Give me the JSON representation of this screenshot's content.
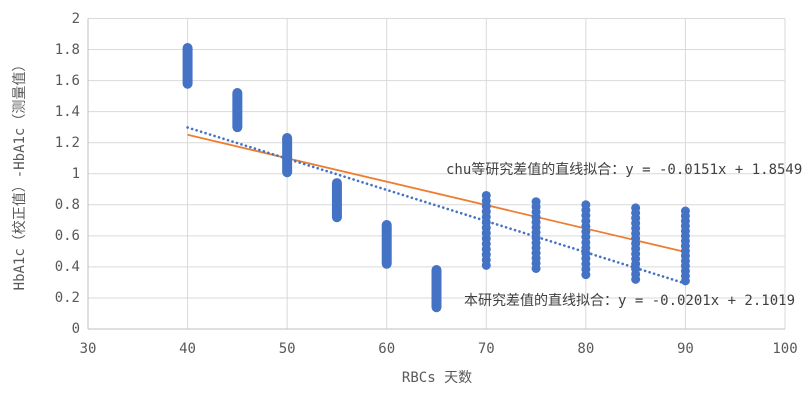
{
  "chart_data": {
    "type": "scatter",
    "title": "",
    "xlabel": "RBCs 天数",
    "ylabel": "HbA1c（校正值）-HbA1c（测量值）",
    "xlim": [
      30,
      100
    ],
    "ylim": [
      0,
      2
    ],
    "grid": true,
    "legend_position": "none",
    "xticks": [
      {
        "v": 30,
        "label": "30"
      },
      {
        "v": 40,
        "label": "40"
      },
      {
        "v": 50,
        "label": "50"
      },
      {
        "v": 60,
        "label": "60"
      },
      {
        "v": 70,
        "label": "70"
      },
      {
        "v": 80,
        "label": "80"
      },
      {
        "v": 90,
        "label": "90"
      },
      {
        "v": 100,
        "label": "100"
      }
    ],
    "yticks": [
      {
        "v": 0,
        "label": "0"
      },
      {
        "v": 0.2,
        "label": "0.2"
      },
      {
        "v": 0.4,
        "label": "0.4"
      },
      {
        "v": 0.6,
        "label": "0.6"
      },
      {
        "v": 0.8,
        "label": "0.8"
      },
      {
        "v": 1,
        "label": "1"
      },
      {
        "v": 1.2,
        "label": "1.2"
      },
      {
        "v": 1.4,
        "label": "1.4"
      },
      {
        "v": 1.6,
        "label": "1.6"
      },
      {
        "v": 1.8,
        "label": "1.8"
      },
      {
        "v": 2,
        "label": "2"
      }
    ],
    "clusters": [
      {
        "x": 40,
        "y_min": 1.58,
        "y_max": 1.81,
        "style": "capsule"
      },
      {
        "x": 45,
        "y_min": 1.3,
        "y_max": 1.52,
        "style": "capsule"
      },
      {
        "x": 50,
        "y_min": 1.01,
        "y_max": 1.23,
        "style": "capsule"
      },
      {
        "x": 55,
        "y_min": 0.72,
        "y_max": 0.94,
        "style": "capsule"
      },
      {
        "x": 60,
        "y_min": 0.42,
        "y_max": 0.67,
        "style": "capsule"
      },
      {
        "x": 65,
        "y_min": 0.14,
        "y_max": 0.38,
        "style": "capsule"
      },
      {
        "x": 70,
        "y_min": 0.41,
        "y_max": 0.86,
        "style": "beads",
        "n_dots": 14
      },
      {
        "x": 75,
        "y_min": 0.39,
        "y_max": 0.82,
        "style": "beads",
        "n_dots": 14
      },
      {
        "x": 80,
        "y_min": 0.35,
        "y_max": 0.8,
        "style": "beads",
        "n_dots": 14
      },
      {
        "x": 85,
        "y_min": 0.32,
        "y_max": 0.78,
        "style": "beads",
        "n_dots": 15
      },
      {
        "x": 90,
        "y_min": 0.31,
        "y_max": 0.76,
        "style": "beads",
        "n_dots": 15
      }
    ],
    "trendlines": [
      {
        "id": "chu-fit",
        "label": "chu等研究差值的直线拟合：y = -0.0151x + 1.8549",
        "equation": "y = -0.0151x + 1.8549",
        "slope": -0.0151,
        "intercept": 1.8549,
        "x_start": 40,
        "x_end": 90,
        "color": "#ED7D31",
        "style": "solid"
      },
      {
        "id": "this-study-fit",
        "label": "本研究差值的直线拟合：y = -0.0201x + 2.1019",
        "equation": "y = -0.0201x + 2.1019",
        "slope": -0.0201,
        "intercept": 2.1019,
        "x_start": 40,
        "x_end": 90,
        "color": "#4472C4",
        "style": "dotted"
      }
    ],
    "colors": {
      "marker": "#4472C4",
      "trend_chu": "#ED7D31",
      "trend_this_study": "#4472C4",
      "gridline": "#D9D9D9",
      "axis_line": "#BFBFBF",
      "tick_label": "#595959",
      "annotation": "#404040",
      "background": "#FFFFFF"
    }
  }
}
